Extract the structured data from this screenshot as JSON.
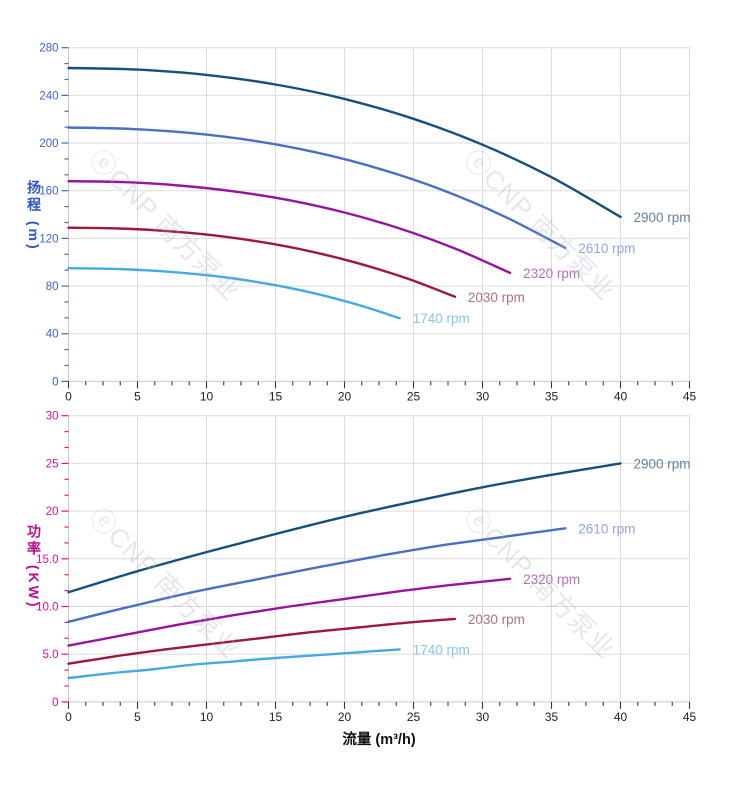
{
  "watermark": {
    "text": "ⓔCNP 南方泵业"
  },
  "xaxis": {
    "title": "流量 (m³/h)",
    "range": [
      0,
      45
    ],
    "major_step": 5,
    "minor_step": 1.25,
    "tick_labels": [
      "0",
      "5",
      "10",
      "15",
      "20",
      "25",
      "30",
      "35",
      "40",
      "45"
    ]
  },
  "chart_data": [
    {
      "type": "line",
      "name": "head-curves",
      "title": "",
      "xlabel": "流量 (m³/h)",
      "ylabel": "扬程 (m)",
      "ylim": [
        0,
        280
      ],
      "xlim": [
        0,
        45
      ],
      "y_major_step": 40,
      "y_minor_step": 13.333,
      "y_tick_labels": [
        "0",
        "40",
        "80",
        "120",
        "160",
        "200",
        "240",
        "280"
      ],
      "grid": true,
      "axis_label_color": "#3f63cf",
      "tick_color": "#3f6ac9",
      "series": [
        {
          "name": "2900 rpm",
          "color": "#175078",
          "label_color": "#64829f",
          "points": [
            [
              0,
              263
            ],
            [
              5,
              261.6
            ],
            [
              10,
              257.2
            ],
            [
              15,
              249.1
            ],
            [
              20,
              237
            ],
            [
              25,
              220.3
            ],
            [
              30,
              198.6
            ],
            [
              35,
              171.3
            ],
            [
              40,
              138
            ]
          ]
        },
        {
          "name": "2610 rpm",
          "color": "#4b70bf",
          "label_color": "#8fa5dc",
          "points": [
            [
              0,
              213
            ],
            [
              4.5,
              211.9
            ],
            [
              9,
              208.3
            ],
            [
              13.5,
              201.8
            ],
            [
              18,
              192
            ],
            [
              22.5,
              178.5
            ],
            [
              27,
              161
            ],
            [
              31.5,
              138.9
            ],
            [
              36,
              112
            ]
          ]
        },
        {
          "name": "2320 rpm",
          "color": "#97149d",
          "label_color": "#bd6cbe",
          "points": [
            [
              0,
              168
            ],
            [
              4,
              167.2
            ],
            [
              8,
              164.4
            ],
            [
              12,
              159.4
            ],
            [
              16,
              152
            ],
            [
              20,
              141.7
            ],
            [
              24,
              128.3
            ],
            [
              28,
              111.5
            ],
            [
              32,
              91
            ]
          ]
        },
        {
          "name": "2030 rpm",
          "color": "#9a1a38",
          "label_color": "#b4707f",
          "points": [
            [
              0,
              129
            ],
            [
              3.5,
              128.4
            ],
            [
              7,
              126.3
            ],
            [
              10.5,
              122.6
            ],
            [
              14,
              116.9
            ],
            [
              17.5,
              109.2
            ],
            [
              21,
              99.1
            ],
            [
              24.5,
              86.5
            ],
            [
              28,
              71
            ]
          ]
        },
        {
          "name": "1740 rpm",
          "color": "#45aadf",
          "label_color": "#85c6ea",
          "points": [
            [
              0,
              95
            ],
            [
              3,
              94.5
            ],
            [
              6,
              93
            ],
            [
              9,
              90.3
            ],
            [
              12,
              86.3
            ],
            [
              15,
              80.7
            ],
            [
              18,
              73.4
            ],
            [
              21,
              64.2
            ],
            [
              24,
              53
            ]
          ]
        }
      ]
    },
    {
      "type": "line",
      "name": "power-curves",
      "title": "",
      "xlabel": "流量 (m³/h)",
      "ylabel": "功率 (KW)",
      "ylim": [
        0,
        30
      ],
      "xlim": [
        0,
        45
      ],
      "y_major_step": 5,
      "y_minor_step": 1.667,
      "y_tick_labels": [
        "0",
        "5.0",
        "10.0",
        "15.0",
        "20",
        "25",
        "30"
      ],
      "grid": true,
      "axis_label_color": "#d6169e",
      "tick_color": "#d6169e",
      "series": [
        {
          "name": "2900 rpm",
          "color": "#175078",
          "label_color": "#64829f",
          "points": [
            [
              0,
              11.5
            ],
            [
              5,
              13.7
            ],
            [
              10,
              15.7
            ],
            [
              15,
              17.6
            ],
            [
              20,
              19.4
            ],
            [
              25,
              21.0
            ],
            [
              30,
              22.5
            ],
            [
              35,
              23.8
            ],
            [
              40,
              25
            ]
          ]
        },
        {
          "name": "2610 rpm",
          "color": "#4b70bf",
          "label_color": "#8fa5dc",
          "points": [
            [
              0,
              8.4
            ],
            [
              4.5,
              10.0
            ],
            [
              9,
              11.5
            ],
            [
              13.5,
              12.8
            ],
            [
              18,
              14.1
            ],
            [
              22.5,
              15.3
            ],
            [
              27,
              16.4
            ],
            [
              31.5,
              17.3
            ],
            [
              36,
              18.2
            ]
          ]
        },
        {
          "name": "2320 rpm",
          "color": "#97149d",
          "label_color": "#bd6cbe",
          "points": [
            [
              0,
              5.9
            ],
            [
              4,
              7.0
            ],
            [
              8,
              8.1
            ],
            [
              12,
              9.1
            ],
            [
              16,
              10.0
            ],
            [
              20,
              10.8
            ],
            [
              24,
              11.6
            ],
            [
              28,
              12.3
            ],
            [
              32,
              12.9
            ]
          ]
        },
        {
          "name": "2030 rpm",
          "color": "#9a1a38",
          "label_color": "#b4707f",
          "points": [
            [
              0,
              4.0
            ],
            [
              3.5,
              4.8
            ],
            [
              7,
              5.5
            ],
            [
              10.5,
              6.1
            ],
            [
              14,
              6.7
            ],
            [
              17.5,
              7.3
            ],
            [
              21,
              7.8
            ],
            [
              24.5,
              8.3
            ],
            [
              28,
              8.7
            ]
          ]
        },
        {
          "name": "1740 rpm",
          "color": "#45aadf",
          "label_color": "#85c6ea",
          "points": [
            [
              0,
              2.5
            ],
            [
              3,
              3.0
            ],
            [
              6,
              3.4
            ],
            [
              9,
              3.9
            ],
            [
              12,
              4.25
            ],
            [
              15,
              4.6
            ],
            [
              18,
              4.9
            ],
            [
              21,
              5.2
            ],
            [
              24,
              5.5
            ]
          ]
        }
      ]
    }
  ],
  "style": {
    "grid_color": "#dcdcdc",
    "axis_line_color": "#c9c9c9",
    "x_tick_color": "#3a3a3a",
    "x_label_color": "#1f1f1f"
  }
}
